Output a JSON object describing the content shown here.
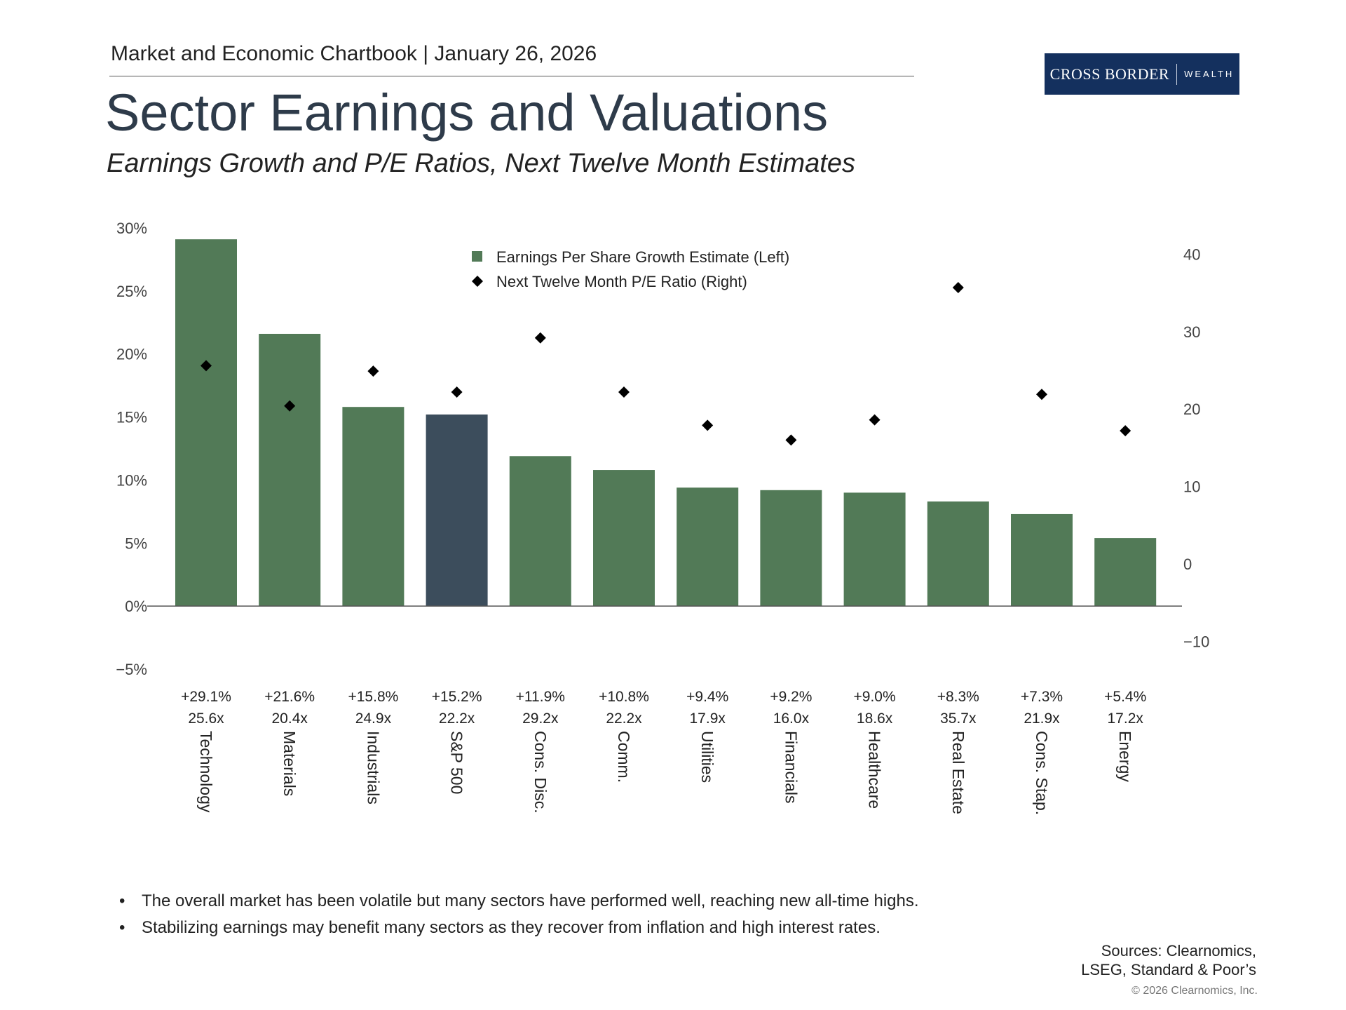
{
  "header": {
    "chartbook": "Market and Economic Chartbook | January 26, 2026",
    "title": "Sector Earnings and Valuations",
    "subtitle": "Earnings Growth and P/E Ratios, Next Twelve Month Estimates"
  },
  "logo": {
    "main": "CROSS BORDER",
    "sub": "WEALTH"
  },
  "colors": {
    "bar": "#527a57",
    "highlight": "#3c4d5c",
    "marker": "#000000",
    "axis": "#555555",
    "logo_bg": "#14305e"
  },
  "chart_data": {
    "type": "bar",
    "title": "",
    "categories": [
      "Technology",
      "Materials",
      "Industrials",
      "S&P 500",
      "Cons. Disc.",
      "Comm.",
      "Utilities",
      "Financials",
      "Healthcare",
      "Real Estate",
      "Cons. Stap.",
      "Energy"
    ],
    "highlight_category": "S&P 500",
    "series": [
      {
        "name": "Earnings Per Share Growth Estimate (Left)",
        "axis": "left",
        "mark": "bar",
        "values": [
          29.1,
          21.6,
          15.8,
          15.2,
          11.9,
          10.8,
          9.4,
          9.2,
          9.0,
          8.3,
          7.3,
          5.4
        ]
      },
      {
        "name": "Next Twelve Month P/E Ratio (Right)",
        "axis": "right",
        "mark": "diamond",
        "values": [
          25.6,
          20.4,
          24.9,
          22.2,
          29.2,
          22.2,
          17.9,
          16.0,
          18.6,
          35.7,
          21.9,
          17.2
        ]
      }
    ],
    "growth_labels": [
      "+29.1%",
      "+21.6%",
      "+15.8%",
      "+15.2%",
      "+11.9%",
      "+10.8%",
      "+9.4%",
      "+9.2%",
      "+9.0%",
      "+8.3%",
      "+7.3%",
      "+5.4%"
    ],
    "pe_labels": [
      "25.6x",
      "20.4x",
      "24.9x",
      "22.2x",
      "29.2x",
      "22.2x",
      "17.9x",
      "16.0x",
      "18.6x",
      "35.7x",
      "21.9x",
      "17.2x"
    ],
    "left_axis": {
      "ylim": [
        -5,
        30
      ],
      "ticks": [
        30,
        25,
        20,
        15,
        10,
        5,
        0,
        -5
      ],
      "tick_labels": [
        "30%",
        "25%",
        "20%",
        "15%",
        "10%",
        "5%",
        "0%",
        "−5%"
      ]
    },
    "right_axis": {
      "ylim": [
        -13.6,
        43.4
      ],
      "ticks": [
        40,
        30,
        20,
        10,
        0,
        -10
      ],
      "tick_labels": [
        "40",
        "30",
        "20",
        "10",
        "0",
        "−10"
      ]
    },
    "legend": {
      "position": "top-center"
    },
    "grid": false
  },
  "bullets": [
    "The overall market has been volatile but many sectors have performed well, reaching new all-time highs.",
    "Stabilizing earnings may benefit many sectors as they recover from inflation and high interest rates."
  ],
  "bullet_symbol": "•",
  "sources": [
    "Sources: Clearnomics,",
    "LSEG, Standard & Poor’s"
  ],
  "copyright": "© 2026 Clearnomics, Inc."
}
